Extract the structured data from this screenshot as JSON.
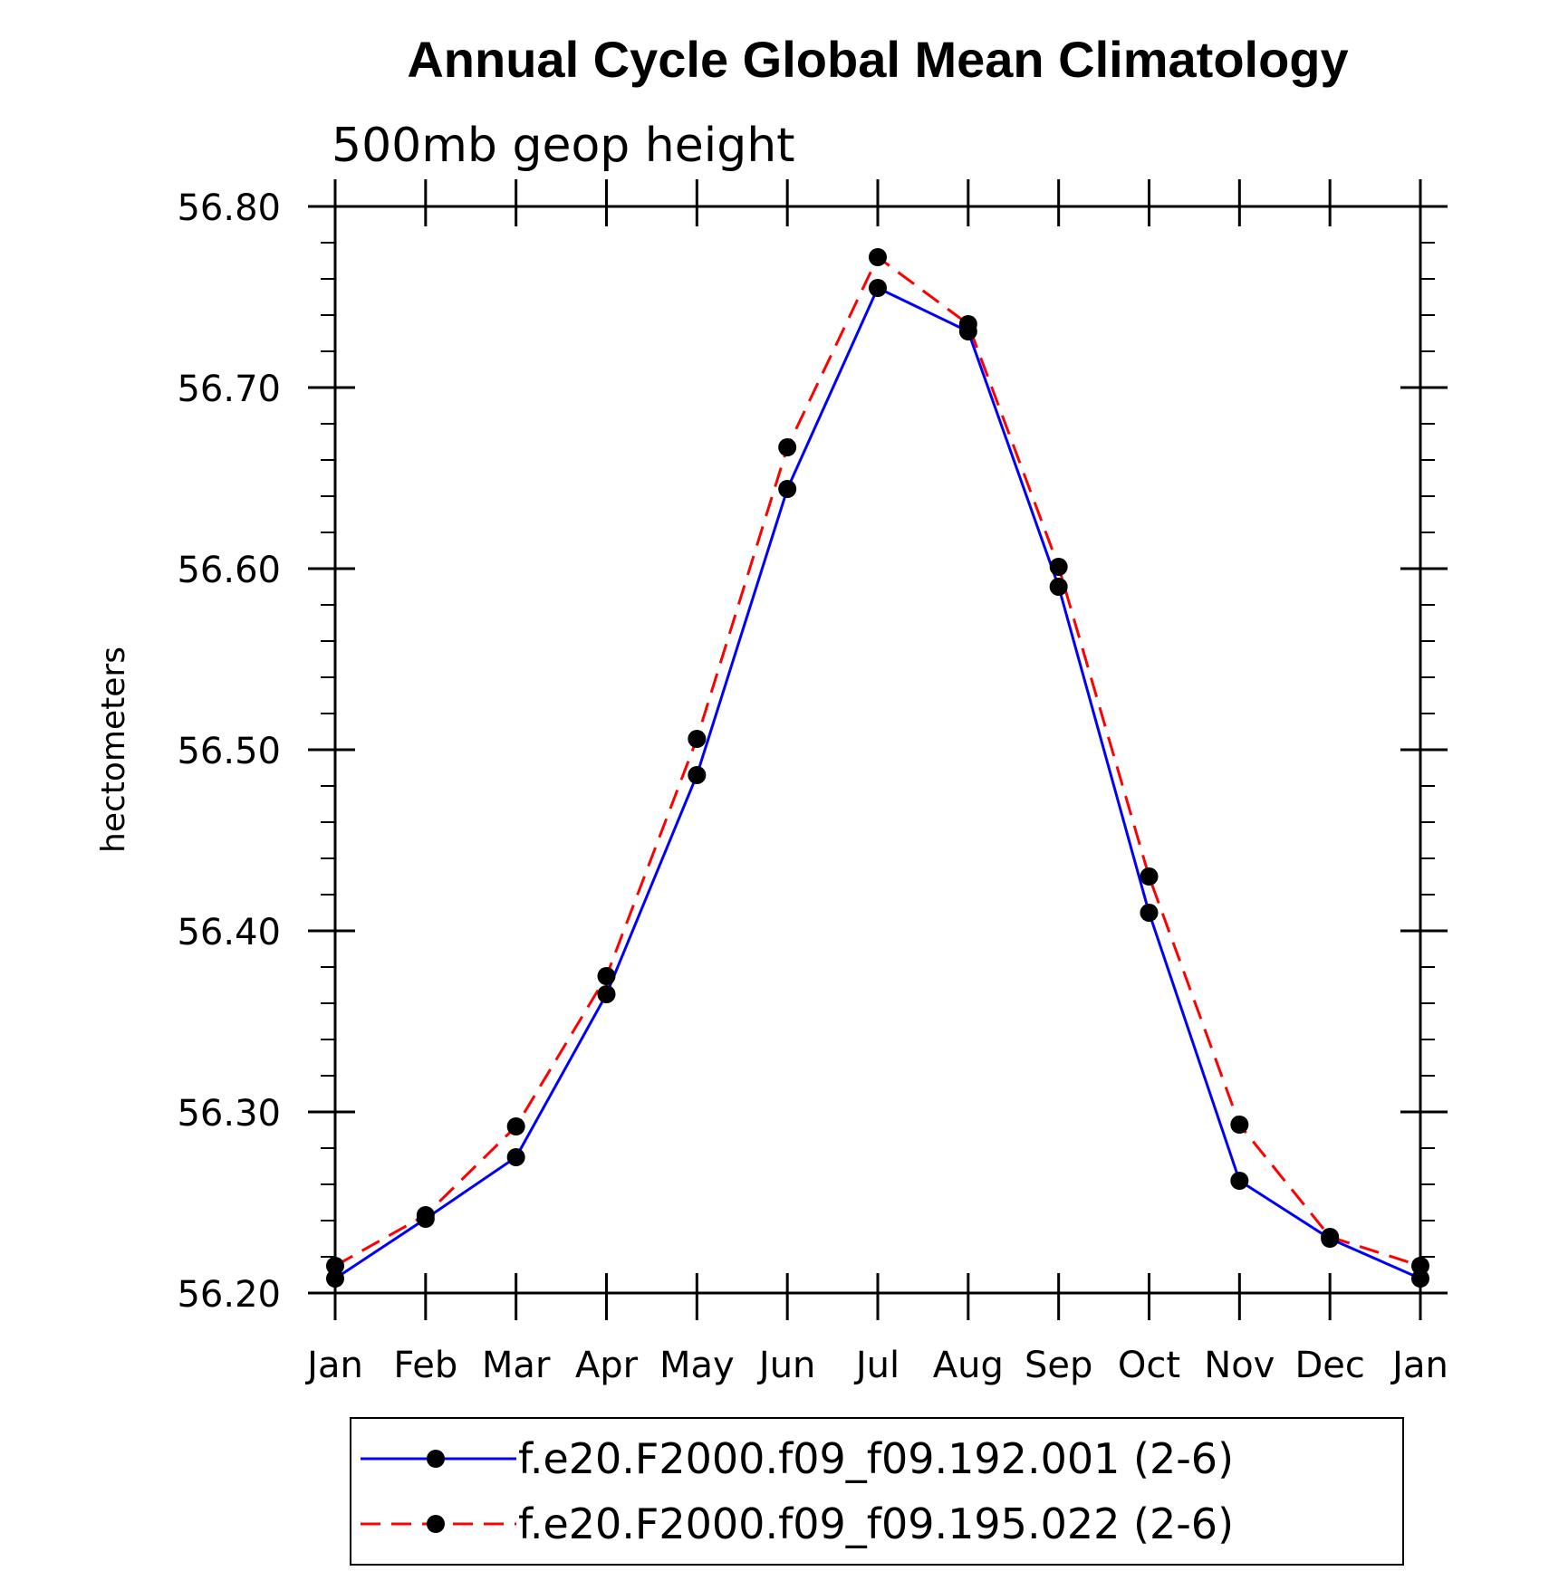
{
  "chart_data": {
    "type": "line",
    "title": "Annual Cycle Global Mean Climatology",
    "subtitle": "500mb geop height",
    "xlabel": "",
    "ylabel": "hectometers",
    "categories": [
      "Jan",
      "Feb",
      "Mar",
      "Apr",
      "May",
      "Jun",
      "Jul",
      "Aug",
      "Sep",
      "Oct",
      "Nov",
      "Dec",
      "Jan"
    ],
    "ylim": [
      56.2,
      56.8
    ],
    "yticks": [
      "56.20",
      "56.30",
      "56.40",
      "56.50",
      "56.60",
      "56.70",
      "56.80"
    ],
    "grid": false,
    "legend_position": "bottom",
    "series": [
      {
        "name": "f.e20.F2000.f09_f09.192.001 (2-6)",
        "color": "#0000ff",
        "dash": "solid",
        "marker": "filled-circle",
        "values": [
          56.208,
          56.241,
          56.275,
          56.365,
          56.486,
          56.644,
          56.755,
          56.731,
          56.59,
          56.41,
          56.262,
          56.23,
          56.208
        ]
      },
      {
        "name": "f.e20.F2000.f09_f09.195.022 (2-6)",
        "color": "#ff0000",
        "dash": "dashed",
        "marker": "filled-circle",
        "values": [
          56.215,
          56.243,
          56.292,
          56.375,
          56.506,
          56.667,
          56.772,
          56.735,
          56.601,
          56.43,
          56.293,
          56.231,
          56.215
        ]
      }
    ]
  }
}
